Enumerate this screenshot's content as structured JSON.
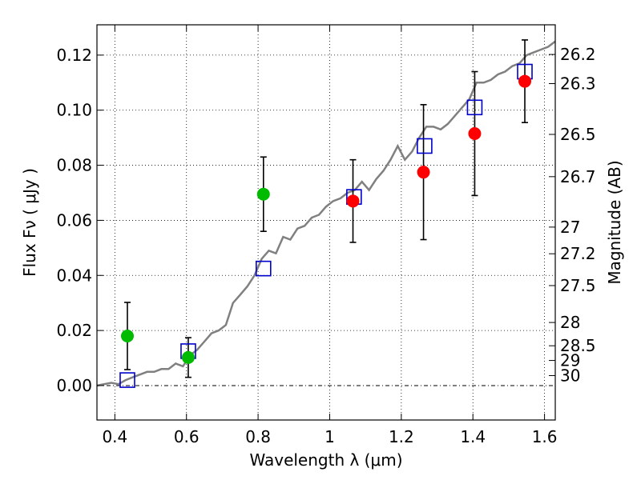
{
  "chart_data": {
    "type": "scatter",
    "xlabel": "Wavelength  λ (μm)",
    "ylabel": "Flux  Fν  ( μJy )",
    "ylabel_right": "Magnitude (AB)",
    "xlim": [
      0.35,
      1.63
    ],
    "ylim": [
      -0.0125,
      0.131
    ],
    "x_ticks": [
      0.4,
      0.6,
      0.8,
      1.0,
      1.2,
      1.4,
      1.6
    ],
    "x_tick_labels": [
      "0.4",
      "0.6",
      "0.8",
      "1",
      "1.2",
      "1.4",
      "1.6"
    ],
    "y_ticks": [
      0.0,
      0.02,
      0.04,
      0.06,
      0.08,
      0.1,
      0.12
    ],
    "y_tick_labels": [
      "0.00",
      "0.02",
      "0.04",
      "0.06",
      "0.08",
      "0.10",
      "0.12"
    ],
    "right_ticks": [
      {
        "mag": 26.2,
        "label": "26.2"
      },
      {
        "mag": 26.3,
        "label": "26.3"
      },
      {
        "mag": 26.5,
        "label": "26.5"
      },
      {
        "mag": 26.7,
        "label": "26.7"
      },
      {
        "mag": 27.0,
        "label": "27"
      },
      {
        "mag": 27.2,
        "label": "27.2"
      },
      {
        "mag": 27.5,
        "label": "27.5"
      },
      {
        "mag": 28.0,
        "label": "28"
      },
      {
        "mag": 28.5,
        "label": "28.5"
      },
      {
        "mag": 29.0,
        "label": "29"
      },
      {
        "mag": 30.0,
        "label": "30"
      }
    ],
    "grid": true,
    "colors": {
      "model_line": "#808080",
      "model_points": "#0000cc",
      "detections": "#ff0000",
      "other_detections": "#00bb00",
      "errorbar": "#000000"
    },
    "series": [
      {
        "name": "model_spectrum",
        "kind": "line",
        "x": [
          0.35,
          0.37,
          0.39,
          0.41,
          0.43,
          0.45,
          0.47,
          0.49,
          0.51,
          0.53,
          0.55,
          0.57,
          0.59,
          0.61,
          0.63,
          0.65,
          0.67,
          0.69,
          0.71,
          0.73,
          0.75,
          0.77,
          0.79,
          0.81,
          0.83,
          0.85,
          0.87,
          0.89,
          0.91,
          0.93,
          0.95,
          0.97,
          0.99,
          1.01,
          1.03,
          1.05,
          1.07,
          1.09,
          1.11,
          1.13,
          1.15,
          1.17,
          1.19,
          1.21,
          1.23,
          1.25,
          1.27,
          1.29,
          1.31,
          1.33,
          1.35,
          1.37,
          1.39,
          1.41,
          1.43,
          1.45,
          1.47,
          1.49,
          1.51,
          1.53,
          1.55,
          1.57,
          1.59,
          1.61,
          1.63
        ],
        "y": [
          0.0,
          0.0005,
          0.001,
          0.0005,
          0.002,
          0.003,
          0.004,
          0.005,
          0.005,
          0.006,
          0.006,
          0.008,
          0.007,
          0.011,
          0.013,
          0.016,
          0.019,
          0.02,
          0.022,
          0.03,
          0.033,
          0.036,
          0.04,
          0.046,
          0.049,
          0.048,
          0.054,
          0.053,
          0.057,
          0.058,
          0.061,
          0.062,
          0.065,
          0.067,
          0.068,
          0.07,
          0.071,
          0.074,
          0.071,
          0.075,
          0.078,
          0.082,
          0.087,
          0.082,
          0.085,
          0.09,
          0.094,
          0.094,
          0.093,
          0.095,
          0.098,
          0.101,
          0.104,
          0.11,
          0.11,
          0.111,
          0.113,
          0.114,
          0.116,
          0.117,
          0.12,
          0.121,
          0.122,
          0.123,
          0.125
        ]
      },
      {
        "name": "model_points",
        "kind": "open_square",
        "x": [
          0.435,
          0.605,
          0.815,
          1.068,
          1.265,
          1.405,
          1.545
        ],
        "y": [
          0.002,
          0.0125,
          0.0425,
          0.0685,
          0.087,
          0.101,
          0.114
        ]
      },
      {
        "name": "detections",
        "kind": "filled_circle",
        "x": [
          1.065,
          1.262,
          1.405,
          1.545
        ],
        "y": [
          0.067,
          0.0775,
          0.0915,
          0.1105
        ],
        "yerr": [
          0.015,
          0.0245,
          0.0225,
          0.015
        ]
      },
      {
        "name": "other_detections",
        "kind": "filled_circle",
        "x": [
          0.435,
          0.605,
          0.815
        ],
        "y": [
          0.018,
          0.0102,
          0.0695
        ],
        "yerr": [
          0.0122,
          0.0072,
          0.0135
        ]
      }
    ]
  }
}
